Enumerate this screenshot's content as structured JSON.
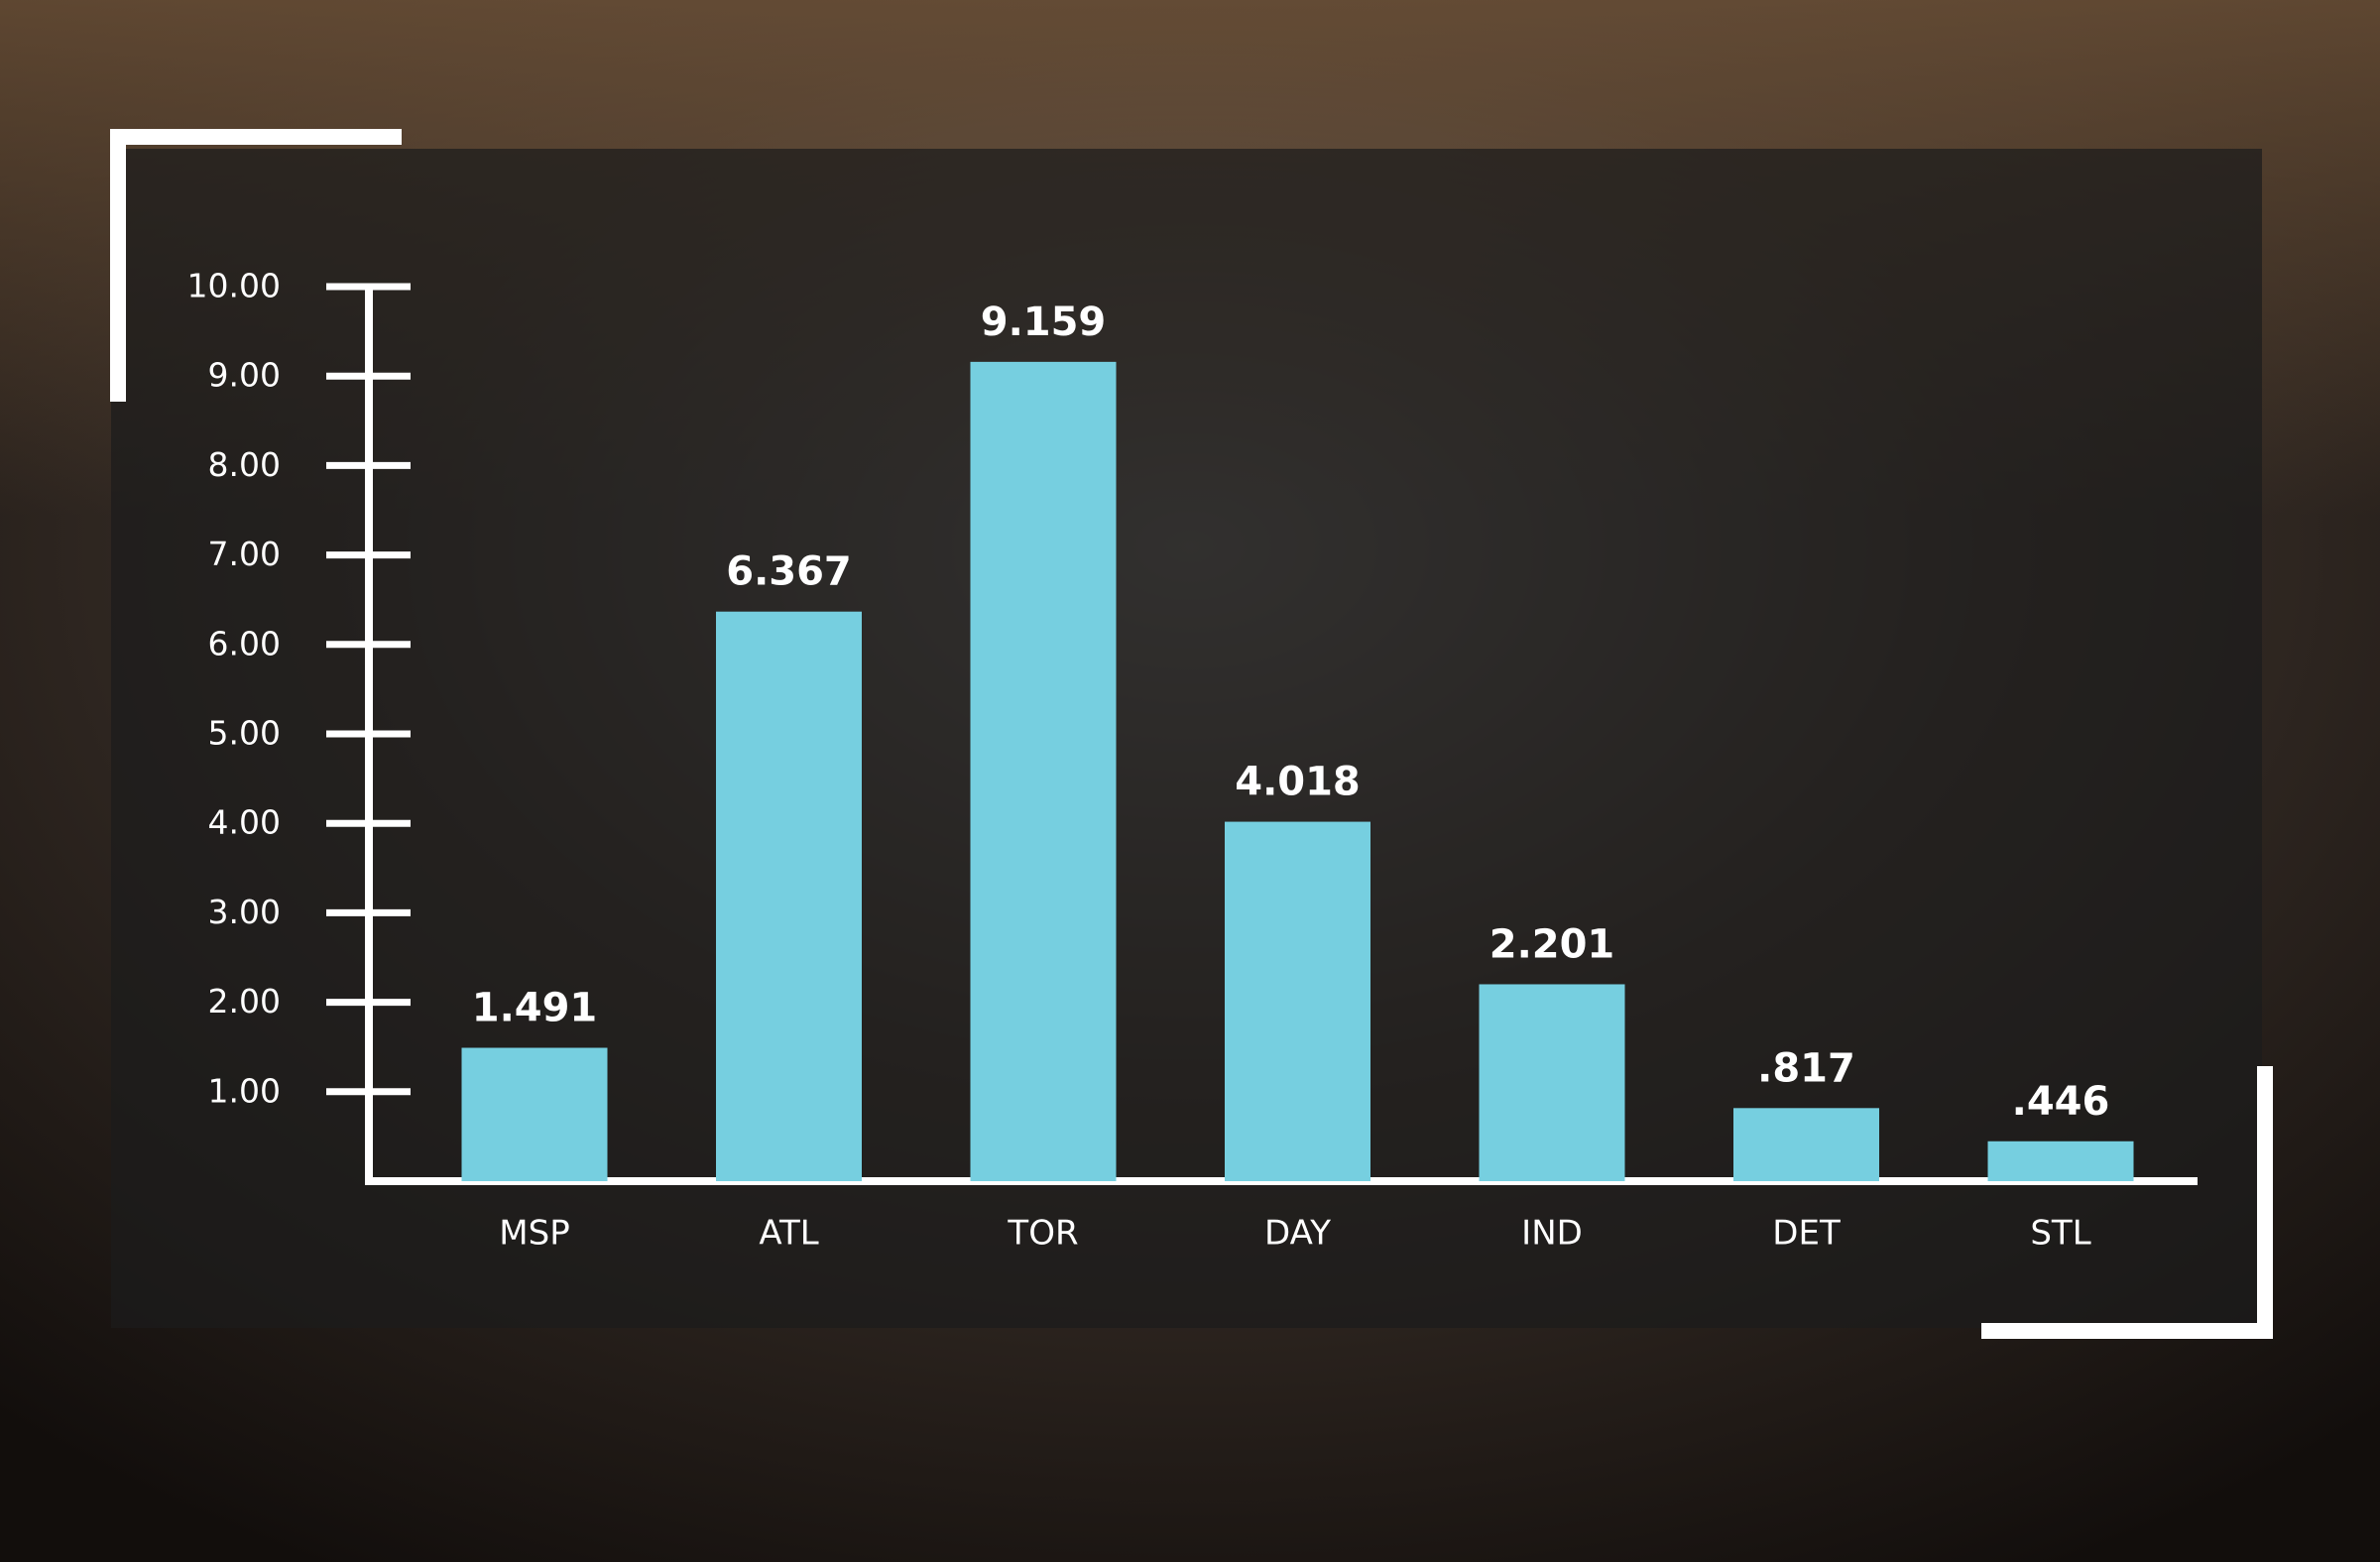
{
  "chart_data": {
    "type": "bar",
    "categories": [
      "MSP",
      "ATL",
      "TOR",
      "DAY",
      "IND",
      "DET",
      "STL"
    ],
    "values": [
      1.491,
      6.367,
      9.159,
      4.018,
      2.201,
      0.817,
      0.446
    ],
    "value_labels": [
      "1.491",
      "6.367",
      "9.159",
      "4.018",
      "2.201",
      ".817",
      ".446"
    ],
    "color": "#76cfe0",
    "ylim": [
      0,
      10
    ],
    "yticks": [
      {
        "value": 1,
        "label": "1.00"
      },
      {
        "value": 2,
        "label": "2.00"
      },
      {
        "value": 3,
        "label": "3.00"
      },
      {
        "value": 4,
        "label": "4.00"
      },
      {
        "value": 5,
        "label": "5.00"
      },
      {
        "value": 6,
        "label": "6.00"
      },
      {
        "value": 7,
        "label": "7.00"
      },
      {
        "value": 8,
        "label": "8.00"
      },
      {
        "value": 9,
        "label": "9.00"
      },
      {
        "value": 10,
        "label": "10.00"
      }
    ]
  }
}
